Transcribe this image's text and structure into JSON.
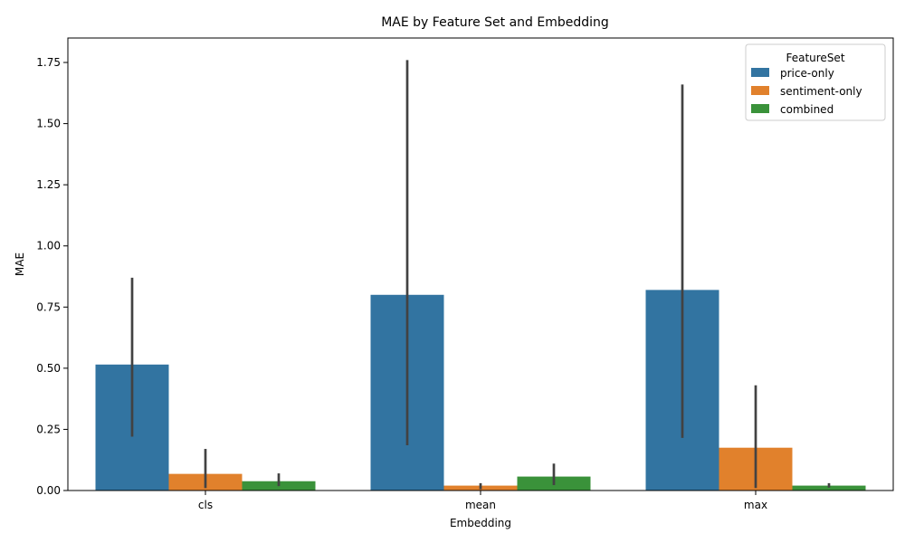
{
  "chart_data": {
    "type": "bar",
    "title": "MAE by Feature Set and Embedding",
    "xlabel": "Embedding",
    "ylabel": "MAE",
    "categories": [
      "cls",
      "mean",
      "max"
    ],
    "ylim": [
      0,
      1.85
    ],
    "yticks": [
      "0.00",
      "0.25",
      "0.50",
      "0.75",
      "1.00",
      "1.25",
      "1.50",
      "1.75"
    ],
    "legend": {
      "title": "FeatureSet",
      "placement": "top-right"
    },
    "grid": false,
    "series": [
      {
        "name": "price-only",
        "color": "#3274a1",
        "values": [
          0.515,
          0.8,
          0.82
        ],
        "ci": [
          [
            0.22,
            0.87
          ],
          [
            0.185,
            1.76
          ],
          [
            0.215,
            1.66
          ]
        ]
      },
      {
        "name": "sentiment-only",
        "color": "#e1812c",
        "values": [
          0.068,
          0.02,
          0.175
        ],
        "ci": [
          [
            0.01,
            0.17
          ],
          [
            0.005,
            0.03
          ],
          [
            0.01,
            0.43
          ]
        ]
      },
      {
        "name": "combined",
        "color": "#3a923a",
        "values": [
          0.038,
          0.057,
          0.02
        ],
        "ci": [
          [
            0.018,
            0.07
          ],
          [
            0.022,
            0.11
          ],
          [
            0.012,
            0.03
          ]
        ]
      }
    ]
  }
}
